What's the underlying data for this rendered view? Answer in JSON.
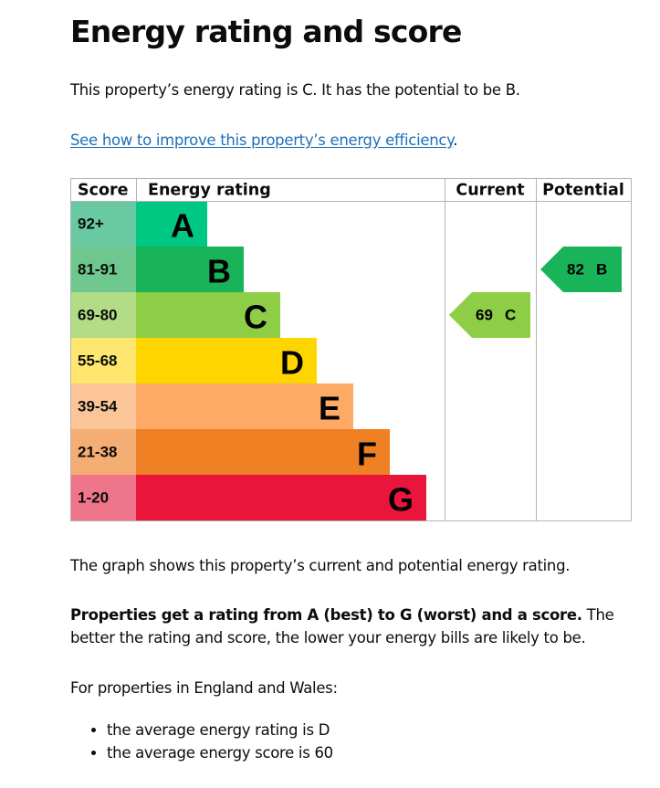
{
  "page": {
    "title": "Energy rating and score",
    "intro": "This property’s energy rating is C. It has the potential to be B.",
    "link_text": "See how to improve this property’s energy efficiency",
    "link_suffix": ".",
    "graph_caption": "The graph shows this property’s current and potential energy rating.",
    "ratings_bold": "Properties get a rating from A (best) to G (worst) and a score.",
    "ratings_rest": " The better the rating and score, the lower your energy bills are likely to be.",
    "averages_intro": "For properties in England and Wales:",
    "averages": [
      "the average energy rating is D",
      "the average energy score is 60"
    ]
  },
  "chart_data": {
    "type": "bar",
    "headers": {
      "score": "Score",
      "rating": "Energy rating",
      "current": "Current",
      "potential": "Potential"
    },
    "bands": [
      {
        "letter": "A",
        "range": "92+",
        "color": "#00c781",
        "range_color": "#68c9a3"
      },
      {
        "letter": "B",
        "range": "81-91",
        "color": "#19b459",
        "range_color": "#6ec78f"
      },
      {
        "letter": "C",
        "range": "69-80",
        "color": "#8dce46",
        "range_color": "#b2dc86"
      },
      {
        "letter": "D",
        "range": "55-68",
        "color": "#ffd500",
        "range_color": "#ffe76f"
      },
      {
        "letter": "E",
        "range": "39-54",
        "color": "#fcaa65",
        "range_color": "#fcc599"
      },
      {
        "letter": "F",
        "range": "21-38",
        "color": "#ef8023",
        "range_color": "#f4ad72"
      },
      {
        "letter": "G",
        "range": "1-20",
        "color": "#e9153b",
        "range_color": "#ef758a"
      }
    ],
    "current": {
      "score": 69,
      "letter": "C",
      "color": "#8dce46"
    },
    "potential": {
      "score": 82,
      "letter": "B",
      "color": "#19b459"
    }
  }
}
